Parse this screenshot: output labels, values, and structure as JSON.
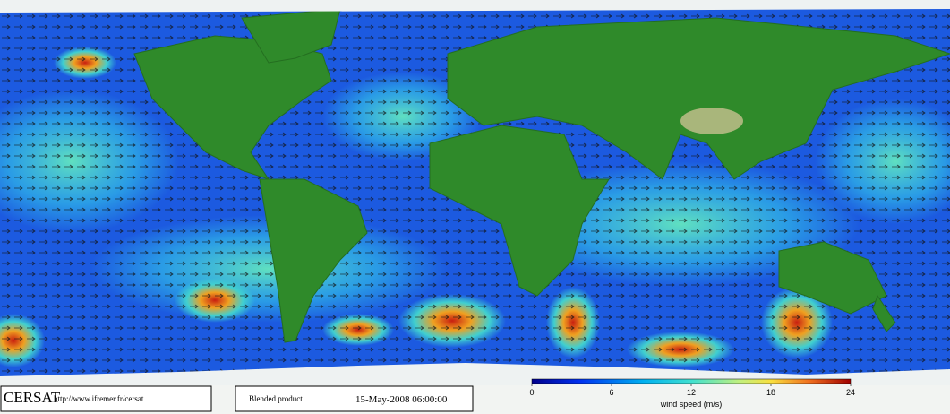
{
  "footer": {
    "logo": "CERSAT",
    "url": "http://www.ifremer.fr/cersat",
    "product": "Blended product",
    "date": "15-May-2008 06:00:00"
  },
  "colorbar": {
    "label": "wind speed (m/s)",
    "lim": [
      0,
      24
    ],
    "ticks": [
      0,
      6,
      12,
      18,
      24
    ]
  }
}
